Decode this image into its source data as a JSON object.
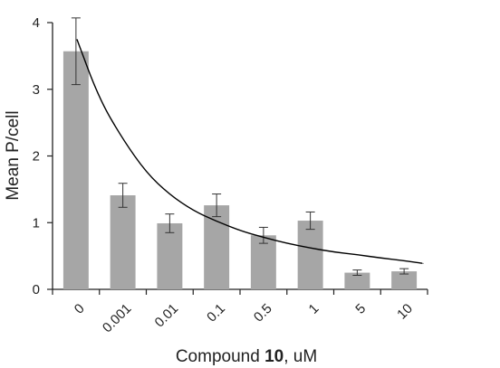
{
  "chart_data": {
    "type": "bar",
    "title": "",
    "xlabel": "Compound 10, uM",
    "xlabel_parts": {
      "prefix": "Compound ",
      "bold": "10",
      "suffix": ", uM"
    },
    "ylabel": "Mean P/cell",
    "categories": [
      "0",
      "0.001",
      "0.01",
      "0.1",
      "0.5",
      "1",
      "5",
      "10"
    ],
    "values": [
      3.57,
      1.41,
      0.99,
      1.26,
      0.81,
      1.03,
      0.25,
      0.27
    ],
    "errors": [
      0.5,
      0.18,
      0.14,
      0.17,
      0.12,
      0.13,
      0.04,
      0.04
    ],
    "yticks": [
      0,
      1,
      2,
      3,
      4
    ],
    "ylim": [
      0,
      4
    ],
    "grid": false,
    "trend_line": {
      "type": "fit curve",
      "x": [
        0.02,
        0.5,
        1,
        1.5,
        2,
        2.5,
        3,
        3.5,
        4,
        4.5,
        5,
        5.5,
        6,
        6.5,
        7,
        7.4
      ],
      "y": [
        3.75,
        2.85,
        2.25,
        1.75,
        1.42,
        1.18,
        1.02,
        0.88,
        0.78,
        0.69,
        0.62,
        0.56,
        0.52,
        0.47,
        0.43,
        0.39
      ]
    },
    "colors": {
      "bar": "#a6a6a6",
      "line": "#000000",
      "axis": "#222222"
    }
  }
}
